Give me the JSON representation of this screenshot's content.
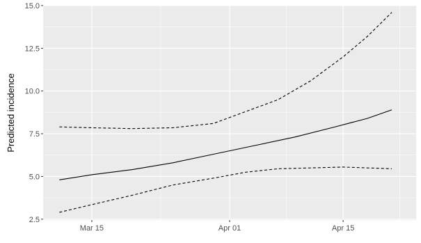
{
  "chart_data": {
    "type": "line",
    "title": "",
    "xlabel": "",
    "ylabel": "Predicted incidence",
    "x_ticks": [
      {
        "date": "2020-03-15",
        "label": "Mar 15"
      },
      {
        "date": "2020-04-01",
        "label": "Apr 01"
      },
      {
        "date": "2020-04-15",
        "label": "Apr 15"
      }
    ],
    "y_ticks": [
      2.5,
      5.0,
      7.5,
      10.0,
      12.5,
      15.0
    ],
    "y_tick_labels": [
      "2.5",
      "5.0",
      "7.5",
      "10.0",
      "12.5",
      "15.0"
    ],
    "xlim": [
      "2020-03-09",
      "2020-04-24"
    ],
    "ylim": [
      2.45,
      15.0
    ],
    "grid": true,
    "legend": "none",
    "colors": {
      "panel_background": "#ebebeb",
      "grid": "#ffffff",
      "line": "#000000"
    },
    "series": [
      {
        "style": "solid",
        "points": [
          [
            "2020-03-11",
            4.8
          ],
          [
            "2020-03-15",
            5.1
          ],
          [
            "2020-03-20",
            5.4
          ],
          [
            "2020-03-25",
            5.8
          ],
          [
            "2020-03-30",
            6.3
          ],
          [
            "2020-04-04",
            6.8
          ],
          [
            "2020-04-09",
            7.3
          ],
          [
            "2020-04-14",
            7.9
          ],
          [
            "2020-04-18",
            8.4
          ],
          [
            "2020-04-21",
            8.9
          ]
        ]
      },
      {
        "style": "dashed",
        "points": [
          [
            "2020-03-11",
            7.9
          ],
          [
            "2020-03-15",
            7.85
          ],
          [
            "2020-03-20",
            7.8
          ],
          [
            "2020-03-25",
            7.85
          ],
          [
            "2020-03-30",
            8.1
          ],
          [
            "2020-04-03",
            8.8
          ],
          [
            "2020-04-07",
            9.5
          ],
          [
            "2020-04-11",
            10.6
          ],
          [
            "2020-04-15",
            12.0
          ],
          [
            "2020-04-18",
            13.2
          ],
          [
            "2020-04-21",
            14.6
          ]
        ]
      },
      {
        "style": "dashed",
        "points": [
          [
            "2020-03-11",
            2.9
          ],
          [
            "2020-03-15",
            3.35
          ],
          [
            "2020-03-20",
            3.9
          ],
          [
            "2020-03-25",
            4.5
          ],
          [
            "2020-03-30",
            4.9
          ],
          [
            "2020-04-03",
            5.25
          ],
          [
            "2020-04-07",
            5.45
          ],
          [
            "2020-04-11",
            5.5
          ],
          [
            "2020-04-15",
            5.55
          ],
          [
            "2020-04-18",
            5.5
          ],
          [
            "2020-04-21",
            5.45
          ]
        ]
      }
    ]
  }
}
